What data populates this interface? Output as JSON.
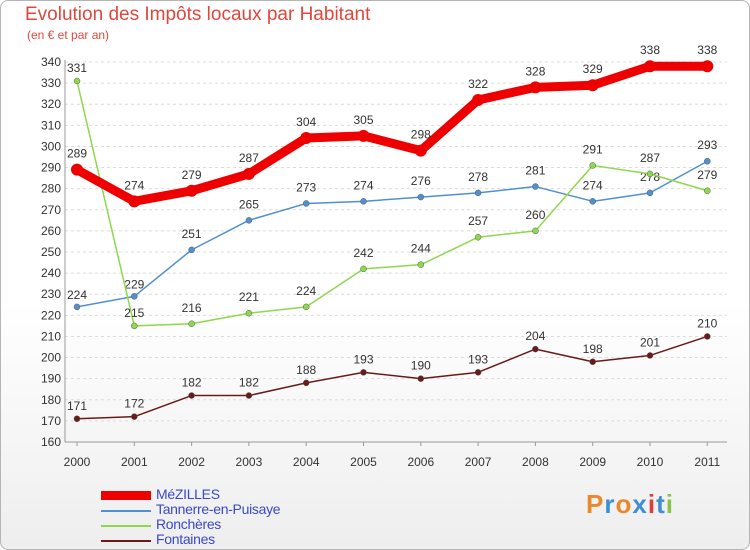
{
  "chart_data": {
    "type": "line",
    "title": "Evolution des Impôts locaux par Habitant",
    "subtitle": "(en € et par an)",
    "categories": [
      "2000",
      "2001",
      "2002",
      "2003",
      "2004",
      "2005",
      "2006",
      "2007",
      "2008",
      "2009",
      "2010",
      "2011"
    ],
    "ylim": [
      160,
      340
    ],
    "yticks": [
      160,
      170,
      180,
      190,
      200,
      210,
      220,
      230,
      240,
      250,
      260,
      270,
      280,
      290,
      300,
      310,
      320,
      330,
      340
    ],
    "grid": "horizontal dashed",
    "legend_position": "bottom-left",
    "series": [
      {
        "name": "MéZILLES",
        "color": "#ee0000",
        "values": [
          289,
          274,
          279,
          287,
          304,
          305,
          298,
          322,
          328,
          329,
          338,
          338
        ]
      },
      {
        "name": "Tannerre-en-Puisaye",
        "color": "#4f90d1",
        "values": [
          224,
          229,
          251,
          265,
          273,
          274,
          276,
          278,
          281,
          274,
          278,
          293
        ]
      },
      {
        "name": "Ronchères",
        "color": "#8ed84d",
        "values": [
          331,
          215,
          216,
          221,
          224,
          242,
          244,
          257,
          260,
          291,
          287,
          279
        ]
      },
      {
        "name": "Fontaines",
        "color": "#6b1a1a",
        "values": [
          171,
          172,
          182,
          182,
          188,
          193,
          190,
          193,
          204,
          198,
          201,
          210
        ]
      }
    ]
  },
  "logo": {
    "text": "Proxiti",
    "colors": [
      "#e88a2a",
      "#3e8ed6",
      "#e88a2a",
      "#3e8ed6",
      "#e03c3c",
      "#3e8ed6",
      "#8bc34a"
    ]
  }
}
